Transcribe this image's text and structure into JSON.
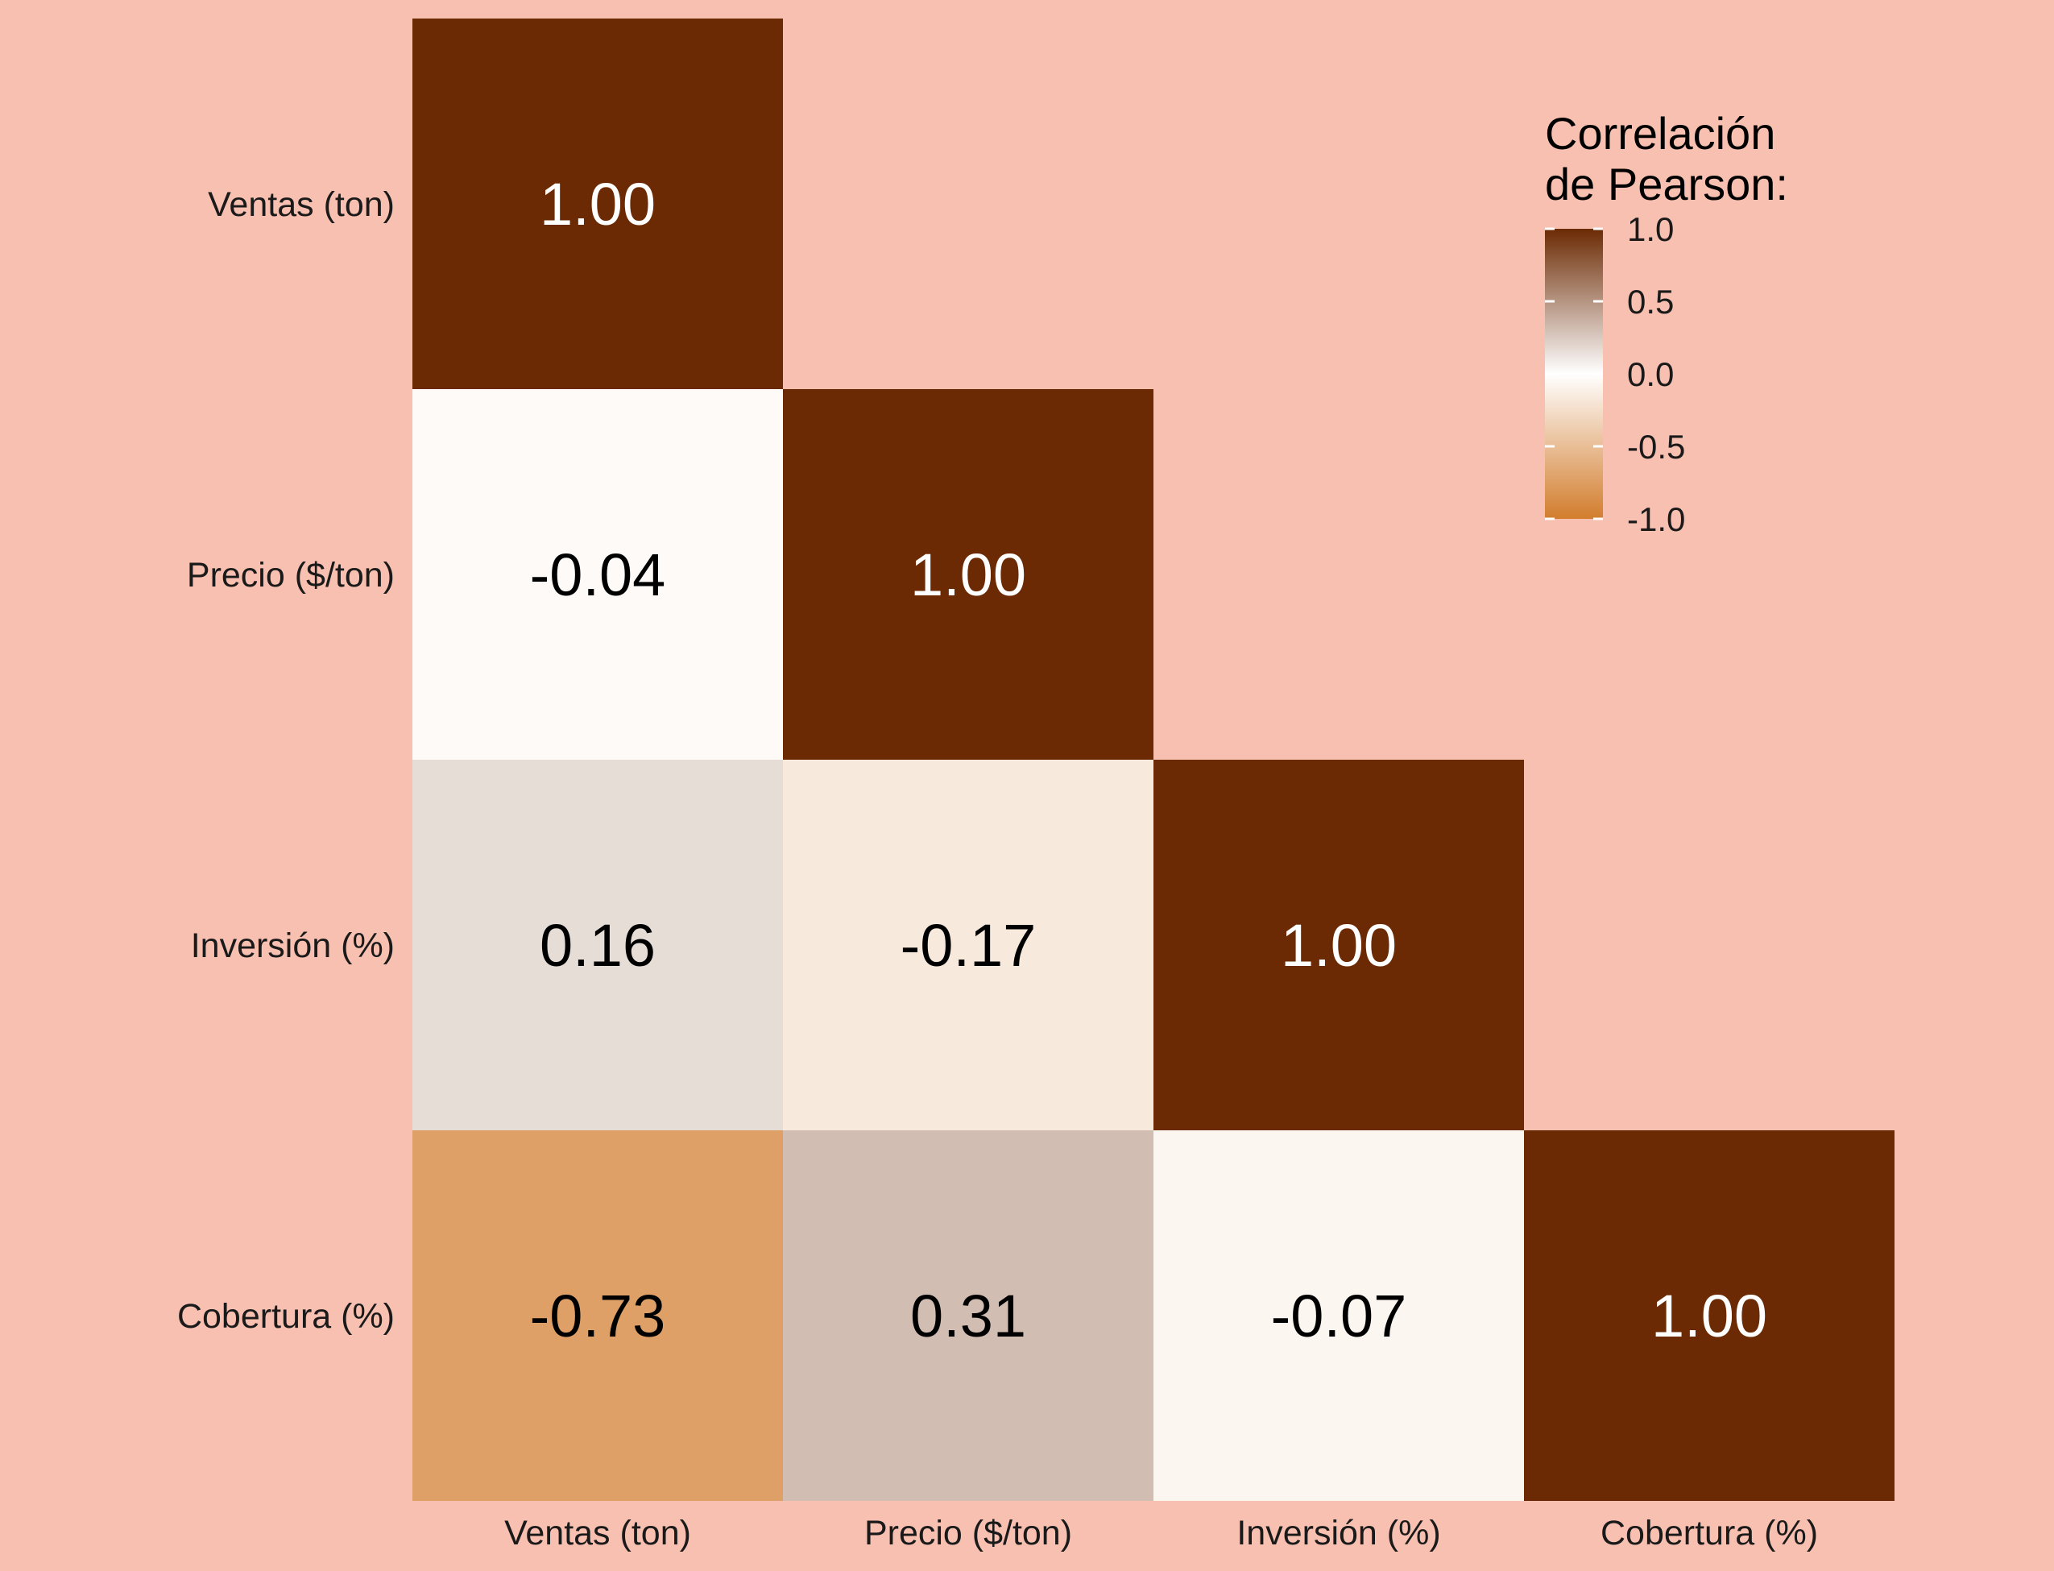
{
  "chart_data": {
    "type": "heatmap",
    "title": "",
    "xlabel": "",
    "ylabel": "",
    "variables": [
      "Ventas (ton)",
      "Precio ($/ton)",
      "Inversión (%)",
      "Cobertura (%)"
    ],
    "matrix": [
      [
        1.0,
        null,
        null,
        null
      ],
      [
        -0.04,
        1.0,
        null,
        null
      ],
      [
        0.16,
        -0.17,
        1.0,
        null
      ],
      [
        -0.73,
        0.31,
        -0.07,
        1.0
      ]
    ],
    "cell_labels": [
      [
        "1.00",
        "",
        "",
        ""
      ],
      [
        "-0.04",
        "1.00",
        "",
        ""
      ],
      [
        "0.16",
        "-0.17",
        "1.00",
        ""
      ],
      [
        "-0.73",
        "0.31",
        "-0.07",
        "1.00"
      ]
    ],
    "legend": {
      "title_lines": [
        "Correlación",
        "de Pearson:"
      ],
      "placement": "top-right",
      "range": [
        -1,
        1
      ],
      "ticks": [
        1.0,
        0.5,
        0.0,
        -0.5,
        -1.0
      ],
      "tick_labels": [
        "1.0",
        "0.5",
        "0.0",
        "-0.5",
        "-1.0"
      ]
    },
    "colors": {
      "low": "#d27d2d",
      "mid": "#ffffff",
      "high": "#6b2a04",
      "background": "#f8c0b0",
      "label_light": "#ffffff",
      "label_dark": "#000000"
    },
    "grid": false
  }
}
